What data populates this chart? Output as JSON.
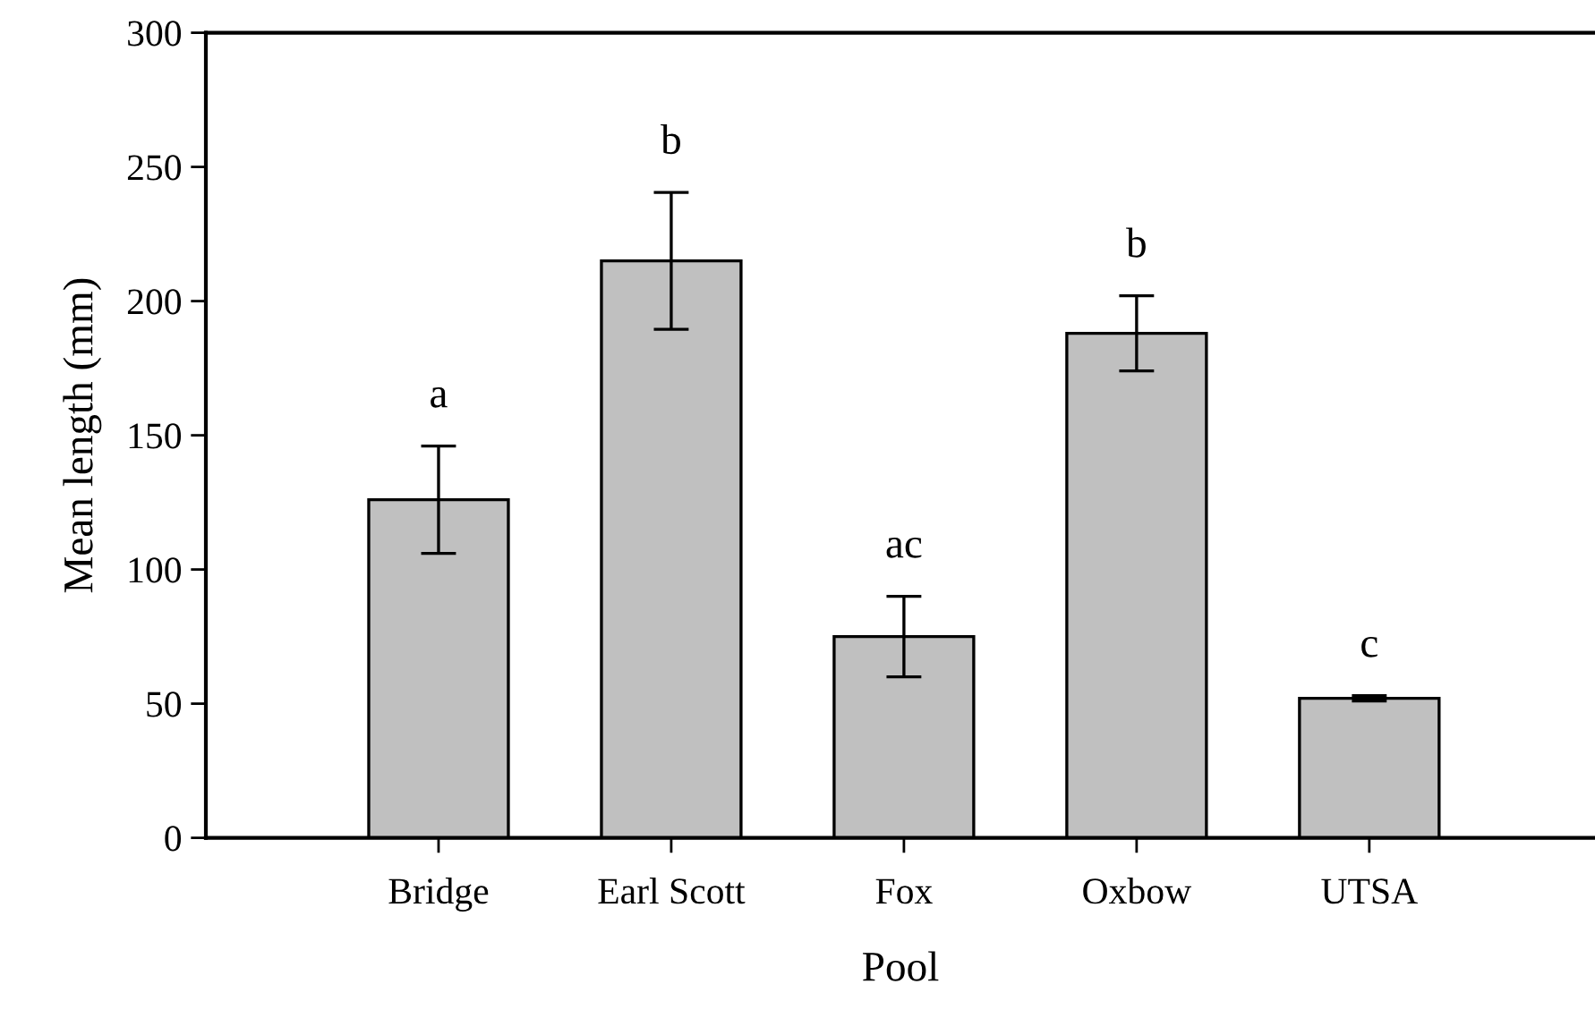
{
  "chart_data": {
    "type": "bar",
    "xlabel": "Pool",
    "ylabel": "Mean length (mm)",
    "categories": [
      "Bridge",
      "Earl Scott",
      "Fox",
      "Oxbow",
      "UTSA"
    ],
    "values": [
      126,
      215,
      75,
      188,
      52
    ],
    "errors": [
      20,
      25.5,
      15,
      14,
      1
    ],
    "color": "#c0c0c0",
    "ylim": [
      0,
      300
    ],
    "yticks": [
      0,
      50,
      100,
      150,
      200,
      250,
      300
    ],
    "grid": false,
    "annotations": [
      "a",
      "b",
      "ac",
      "b",
      "c"
    ]
  }
}
